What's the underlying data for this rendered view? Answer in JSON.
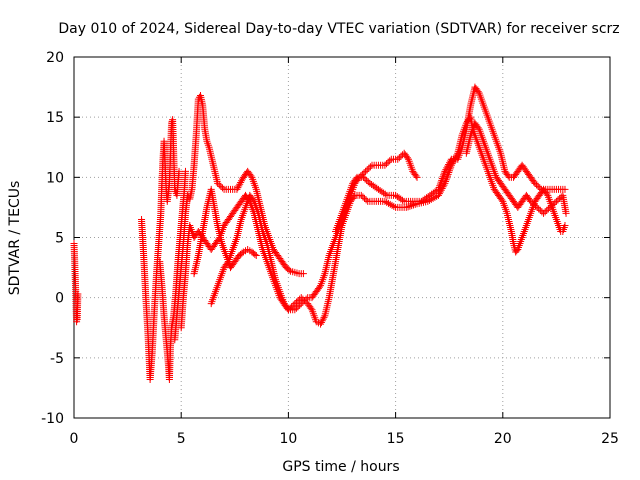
{
  "chart_data": {
    "type": "scatter",
    "title": "Day 010 of 2024, Sidereal Day-to-day VTEC variation (SDTVAR) for receiver scrz",
    "xlabel": "GPS time / hours",
    "ylabel": "SDTVAR / TECUs",
    "xlim": [
      0,
      25
    ],
    "ylim": [
      -10,
      20
    ],
    "x_ticks": [
      0,
      5,
      10,
      15,
      20,
      25
    ],
    "y_ticks": [
      -10,
      -5,
      0,
      5,
      10,
      15,
      20
    ],
    "grid": true,
    "marker": "+",
    "marker_color": "#ff0000",
    "series": [
      {
        "name": "t0",
        "points": [
          [
            0.0,
            4.5
          ],
          [
            0.03,
            3.2
          ],
          [
            0.05,
            2.0
          ],
          [
            0.08,
            0.5
          ],
          [
            0.1,
            -1.0
          ],
          [
            0.12,
            -2.0
          ],
          [
            0.15,
            -1.8
          ],
          [
            0.18,
            0.3
          ]
        ]
      },
      {
        "name": "t1",
        "points": [
          [
            3.15,
            6.5
          ],
          [
            3.2,
            5.0
          ],
          [
            3.25,
            3.5
          ],
          [
            3.35,
            0.0
          ],
          [
            3.45,
            -3.0
          ],
          [
            3.55,
            -6.8
          ],
          [
            3.65,
            -4.5
          ],
          [
            3.75,
            -1.0
          ],
          [
            3.85,
            2.0
          ],
          [
            3.95,
            4.5
          ],
          [
            4.05,
            7.0
          ],
          [
            4.1,
            9.5
          ],
          [
            4.15,
            11.5
          ],
          [
            4.2,
            13.0
          ],
          [
            4.25,
            11.0
          ],
          [
            4.3,
            9.0
          ],
          [
            4.35,
            8.0
          ],
          [
            4.45,
            9.5
          ],
          [
            4.55,
            14.5
          ],
          [
            4.6,
            14.8
          ],
          [
            4.65,
            12.0
          ],
          [
            4.7,
            9.0
          ],
          [
            4.8,
            8.5
          ],
          [
            4.9,
            10.5
          ]
        ]
      },
      {
        "name": "t2",
        "points": [
          [
            4.0,
            3.0
          ],
          [
            4.1,
            1.0
          ],
          [
            4.2,
            -1.5
          ],
          [
            4.3,
            -3.5
          ],
          [
            4.4,
            -5.5
          ],
          [
            4.45,
            -6.8
          ],
          [
            4.5,
            -4.0
          ],
          [
            4.55,
            -2.5
          ],
          [
            4.65,
            -1.5
          ],
          [
            4.75,
            0.5
          ],
          [
            4.85,
            3.0
          ],
          [
            4.95,
            5.0
          ],
          [
            5.05,
            7.0
          ],
          [
            5.15,
            9.0
          ],
          [
            5.2,
            10.5
          ]
        ]
      },
      {
        "name": "t3",
        "points": [
          [
            4.7,
            -3.5
          ],
          [
            4.8,
            -1.5
          ],
          [
            4.9,
            0.5
          ],
          [
            5.0,
            2.5
          ],
          [
            5.1,
            4.5
          ],
          [
            5.2,
            7.0
          ],
          [
            5.3,
            8.5
          ],
          [
            5.4,
            8.2
          ],
          [
            5.5,
            9.0
          ],
          [
            5.6,
            11.0
          ],
          [
            5.7,
            13.5
          ],
          [
            5.8,
            16.5
          ],
          [
            5.9,
            16.8
          ],
          [
            6.0,
            16.0
          ],
          [
            6.1,
            14.0
          ],
          [
            6.2,
            13.0
          ],
          [
            6.3,
            12.5
          ],
          [
            6.5,
            11.0
          ],
          [
            6.7,
            9.5
          ],
          [
            7.0,
            9.0
          ],
          [
            7.3,
            9.0
          ],
          [
            7.6,
            9.0
          ],
          [
            7.9,
            10.0
          ],
          [
            8.1,
            10.5
          ],
          [
            8.3,
            10.0
          ],
          [
            8.5,
            9.0
          ],
          [
            8.7,
            7.5
          ],
          [
            8.9,
            6.0
          ],
          [
            9.1,
            5.0
          ],
          [
            9.3,
            4.0
          ],
          [
            9.5,
            3.5
          ],
          [
            9.7,
            3.0
          ],
          [
            9.9,
            2.5
          ],
          [
            10.1,
            2.2
          ],
          [
            10.5,
            2.0
          ],
          [
            10.7,
            2.0
          ]
        ]
      },
      {
        "name": "t4",
        "points": [
          [
            5.0,
            -2.5
          ],
          [
            5.1,
            0.0
          ],
          [
            5.2,
            2.0
          ],
          [
            5.3,
            4.5
          ],
          [
            5.4,
            6.0
          ],
          [
            5.5,
            5.5
          ],
          [
            5.6,
            5.0
          ],
          [
            5.8,
            5.5
          ],
          [
            6.0,
            5.0
          ],
          [
            6.2,
            4.5
          ],
          [
            6.4,
            4.0
          ],
          [
            6.6,
            4.5
          ],
          [
            6.8,
            5.0
          ],
          [
            7.0,
            6.0
          ],
          [
            7.2,
            6.5
          ],
          [
            7.4,
            7.0
          ],
          [
            7.6,
            7.5
          ],
          [
            7.8,
            8.0
          ],
          [
            8.0,
            8.5
          ],
          [
            8.2,
            8.0
          ],
          [
            8.4,
            7.0
          ],
          [
            8.6,
            5.5
          ],
          [
            8.8,
            4.0
          ],
          [
            9.0,
            3.0
          ],
          [
            9.2,
            2.0
          ],
          [
            9.4,
            1.0
          ],
          [
            9.6,
            0.0
          ],
          [
            9.8,
            -0.5
          ],
          [
            10.0,
            -1.0
          ],
          [
            10.3,
            -1.0
          ],
          [
            10.6,
            -0.5
          ],
          [
            10.9,
            0.0
          ],
          [
            11.1,
            0.0
          ],
          [
            11.3,
            0.5
          ],
          [
            11.5,
            1.0
          ],
          [
            11.7,
            2.0
          ],
          [
            11.9,
            3.5
          ],
          [
            12.1,
            4.5
          ],
          [
            12.3,
            5.5
          ],
          [
            12.5,
            6.5
          ],
          [
            12.7,
            7.5
          ],
          [
            12.9,
            8.5
          ],
          [
            13.1,
            9.5
          ],
          [
            13.3,
            10.0
          ],
          [
            13.6,
            10.5
          ],
          [
            13.9,
            11.0
          ],
          [
            14.2,
            11.0
          ],
          [
            14.5,
            11.0
          ],
          [
            14.8,
            11.5
          ],
          [
            15.1,
            11.5
          ],
          [
            15.4,
            12.0
          ],
          [
            15.6,
            11.5
          ],
          [
            15.8,
            10.5
          ],
          [
            16.0,
            10.0
          ]
        ]
      },
      {
        "name": "t5",
        "points": [
          [
            5.6,
            2.0
          ],
          [
            5.8,
            3.5
          ],
          [
            6.0,
            5.5
          ],
          [
            6.2,
            7.5
          ],
          [
            6.4,
            9.0
          ],
          [
            6.5,
            8.0
          ],
          [
            6.7,
            6.0
          ],
          [
            6.9,
            4.5
          ],
          [
            7.1,
            3.5
          ],
          [
            7.3,
            2.5
          ],
          [
            7.5,
            3.0
          ],
          [
            7.7,
            3.5
          ],
          [
            7.9,
            3.8
          ],
          [
            8.1,
            4.0
          ],
          [
            8.3,
            3.8
          ],
          [
            8.5,
            3.5
          ]
        ]
      },
      {
        "name": "t6",
        "points": [
          [
            6.4,
            -0.5
          ],
          [
            6.6,
            0.5
          ],
          [
            6.8,
            1.5
          ],
          [
            7.0,
            2.5
          ],
          [
            7.2,
            3.0
          ],
          [
            7.4,
            4.0
          ],
          [
            7.6,
            5.0
          ],
          [
            7.8,
            6.5
          ],
          [
            8.0,
            7.5
          ],
          [
            8.2,
            8.5
          ],
          [
            8.4,
            8.0
          ],
          [
            8.6,
            7.0
          ],
          [
            8.8,
            5.5
          ],
          [
            9.0,
            4.5
          ],
          [
            9.2,
            3.0
          ],
          [
            9.4,
            1.5
          ],
          [
            9.6,
            0.5
          ],
          [
            9.8,
            -0.5
          ],
          [
            10.0,
            -1.0
          ],
          [
            10.3,
            -0.5
          ],
          [
            10.6,
            0.0
          ],
          [
            10.9,
            -0.5
          ],
          [
            11.1,
            -1.0
          ],
          [
            11.3,
            -2.0
          ],
          [
            11.5,
            -2.2
          ],
          [
            11.7,
            -1.5
          ],
          [
            11.9,
            0.0
          ],
          [
            12.1,
            2.0
          ],
          [
            12.3,
            4.0
          ],
          [
            12.5,
            6.0
          ],
          [
            12.7,
            7.0
          ],
          [
            12.9,
            8.0
          ],
          [
            13.1,
            8.5
          ],
          [
            13.4,
            8.5
          ],
          [
            13.7,
            8.0
          ],
          [
            14.0,
            8.0
          ],
          [
            14.5,
            8.0
          ],
          [
            15.0,
            7.5
          ],
          [
            15.5,
            7.5
          ],
          [
            16.0,
            7.8
          ],
          [
            16.5,
            8.0
          ],
          [
            17.0,
            8.5
          ],
          [
            17.3,
            9.5
          ],
          [
            17.6,
            11.0
          ],
          [
            17.9,
            12.0
          ],
          [
            18.1,
            13.5
          ],
          [
            18.3,
            14.5
          ],
          [
            18.5,
            15.0
          ],
          [
            18.6,
            14.0
          ],
          [
            18.8,
            13.0
          ],
          [
            19.0,
            12.0
          ],
          [
            19.2,
            11.0
          ],
          [
            19.4,
            10.0
          ],
          [
            19.6,
            9.0
          ],
          [
            19.8,
            8.5
          ],
          [
            20.0,
            8.0
          ],
          [
            20.2,
            7.0
          ],
          [
            20.4,
            5.5
          ],
          [
            20.5,
            4.5
          ],
          [
            20.6,
            3.8
          ],
          [
            20.7,
            4.0
          ],
          [
            20.9,
            5.0
          ],
          [
            21.1,
            6.0
          ],
          [
            21.3,
            7.0
          ],
          [
            21.5,
            8.0
          ],
          [
            21.7,
            8.5
          ],
          [
            21.9,
            9.0
          ],
          [
            22.1,
            8.5
          ],
          [
            22.3,
            7.5
          ],
          [
            22.5,
            6.5
          ],
          [
            22.7,
            5.5
          ],
          [
            22.8,
            5.5
          ],
          [
            22.9,
            6.0
          ]
        ]
      },
      {
        "name": "t7",
        "points": [
          [
            12.2,
            5.5
          ],
          [
            12.4,
            6.5
          ],
          [
            12.6,
            7.5
          ],
          [
            12.8,
            8.5
          ],
          [
            13.0,
            9.5
          ],
          [
            13.2,
            10.0
          ],
          [
            13.5,
            10.0
          ],
          [
            13.8,
            9.5
          ],
          [
            14.2,
            9.0
          ],
          [
            14.6,
            8.5
          ],
          [
            15.0,
            8.5
          ],
          [
            15.4,
            8.0
          ],
          [
            15.8,
            8.0
          ],
          [
            16.2,
            8.0
          ],
          [
            16.6,
            8.5
          ],
          [
            17.0,
            9.0
          ],
          [
            17.3,
            10.5
          ],
          [
            17.6,
            11.5
          ],
          [
            17.9,
            11.5
          ],
          [
            18.1,
            12.5
          ],
          [
            18.3,
            14.0
          ],
          [
            18.5,
            16.0
          ],
          [
            18.7,
            17.5
          ],
          [
            18.9,
            17.0
          ],
          [
            19.1,
            16.0
          ],
          [
            19.3,
            15.0
          ],
          [
            19.5,
            14.0
          ],
          [
            19.7,
            13.0
          ],
          [
            19.9,
            12.0
          ],
          [
            20.1,
            10.5
          ],
          [
            20.3,
            10.0
          ],
          [
            20.5,
            10.0
          ],
          [
            20.7,
            10.5
          ],
          [
            20.9,
            11.0
          ],
          [
            21.1,
            10.5
          ],
          [
            21.3,
            10.0
          ],
          [
            21.5,
            9.5
          ],
          [
            21.8,
            9.0
          ],
          [
            22.1,
            9.0
          ],
          [
            22.4,
            9.0
          ],
          [
            22.7,
            9.0
          ],
          [
            22.9,
            9.0
          ]
        ]
      },
      {
        "name": "t8",
        "points": [
          [
            18.3,
            12.0
          ],
          [
            18.5,
            13.5
          ],
          [
            18.7,
            14.5
          ],
          [
            18.9,
            14.0
          ],
          [
            19.1,
            13.0
          ],
          [
            19.3,
            12.0
          ],
          [
            19.5,
            11.0
          ],
          [
            19.7,
            10.0
          ],
          [
            19.9,
            9.5
          ],
          [
            20.1,
            9.0
          ],
          [
            20.3,
            8.5
          ],
          [
            20.5,
            8.0
          ],
          [
            20.7,
            7.5
          ],
          [
            20.9,
            8.0
          ],
          [
            21.1,
            8.5
          ],
          [
            21.3,
            8.0
          ],
          [
            21.6,
            7.5
          ],
          [
            21.9,
            7.0
          ],
          [
            22.2,
            7.5
          ],
          [
            22.5,
            8.0
          ],
          [
            22.8,
            8.5
          ],
          [
            22.95,
            7.0
          ]
        ]
      }
    ]
  }
}
